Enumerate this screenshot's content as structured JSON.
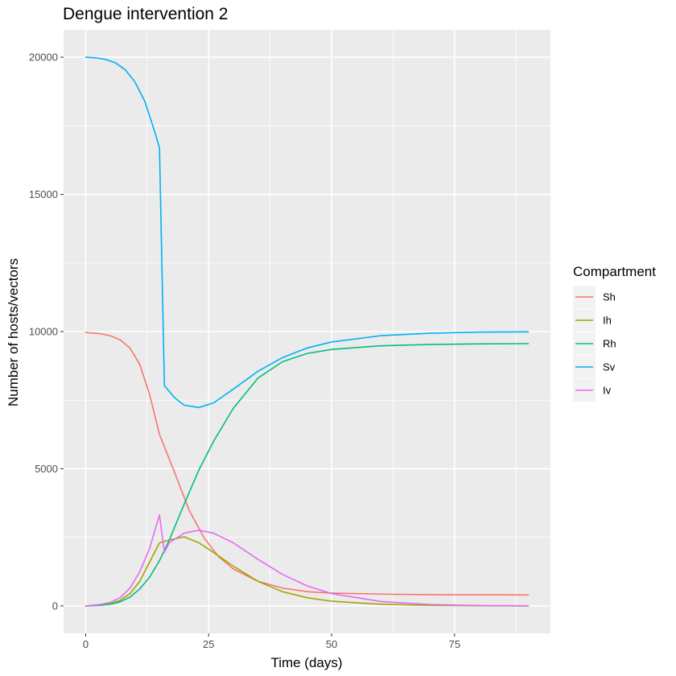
{
  "chart_data": {
    "type": "line",
    "title": "Dengue intervention 2",
    "xlabel": "Time (days)",
    "ylabel": "Number of hosts/vectors",
    "xlim": [
      -4.5,
      94.5
    ],
    "ylim": [
      -1000,
      21000
    ],
    "x_ticks": [
      0,
      25,
      50,
      75
    ],
    "y_ticks": [
      0,
      5000,
      10000,
      15000,
      20000
    ],
    "x_tick_labels": [
      "0",
      "25",
      "50",
      "75"
    ],
    "y_tick_labels": [
      "0",
      "5000",
      "10000",
      "15000",
      "20000"
    ],
    "grid": true,
    "legend": {
      "title": "Compartment",
      "position": "right"
    },
    "background_color": "#ebebeb",
    "series": [
      {
        "name": "Sh",
        "color": "#f8766d",
        "x": [
          0,
          3,
          5,
          7,
          9,
          11,
          13,
          15,
          18,
          21,
          24,
          27,
          30,
          35,
          40,
          45,
          50,
          60,
          70,
          80,
          90
        ],
        "y": [
          9970,
          9920,
          9850,
          9700,
          9400,
          8800,
          7700,
          6250,
          4900,
          3500,
          2500,
          1800,
          1350,
          900,
          650,
          520,
          470,
          430,
          410,
          405,
          400
        ]
      },
      {
        "name": "Ih",
        "color": "#a3a500",
        "x": [
          0,
          3,
          5,
          7,
          9,
          11,
          13,
          15,
          17,
          20,
          23,
          26,
          30,
          35,
          40,
          45,
          50,
          60,
          70,
          80,
          90
        ],
        "y": [
          0,
          30,
          80,
          200,
          450,
          900,
          1600,
          2300,
          2400,
          2520,
          2300,
          1950,
          1450,
          900,
          520,
          300,
          170,
          60,
          20,
          5,
          0
        ]
      },
      {
        "name": "Rh",
        "color": "#00bf7d",
        "x": [
          0,
          3,
          5,
          7,
          9,
          11,
          13,
          15,
          17,
          20,
          23,
          26,
          30,
          35,
          40,
          45,
          50,
          60,
          70,
          80,
          90
        ],
        "y": [
          0,
          20,
          60,
          150,
          320,
          620,
          1050,
          1650,
          2400,
          3700,
          4950,
          6000,
          7200,
          8300,
          8900,
          9200,
          9350,
          9480,
          9530,
          9550,
          9560
        ]
      },
      {
        "name": "Sv",
        "color": "#00b0f6",
        "x": [
          0,
          2,
          4,
          6,
          8,
          10,
          12,
          14,
          15,
          16,
          18,
          20,
          23,
          26,
          30,
          35,
          40,
          45,
          50,
          60,
          70,
          80,
          90
        ],
        "y": [
          20000,
          19980,
          19920,
          19800,
          19550,
          19100,
          18400,
          17300,
          16700,
          8030,
          7600,
          7320,
          7230,
          7400,
          7900,
          8550,
          9050,
          9400,
          9620,
          9850,
          9940,
          9980,
          9990
        ]
      },
      {
        "name": "Iv",
        "color": "#e76bf3",
        "x": [
          0,
          3,
          5,
          7,
          9,
          11,
          13,
          15,
          16,
          17,
          20,
          23,
          26,
          30,
          35,
          40,
          45,
          50,
          60,
          70,
          80,
          90
        ],
        "y": [
          0,
          50,
          130,
          300,
          650,
          1250,
          2100,
          3320,
          1950,
          2300,
          2650,
          2760,
          2650,
          2300,
          1700,
          1150,
          730,
          450,
          160,
          50,
          15,
          5
        ]
      }
    ]
  }
}
